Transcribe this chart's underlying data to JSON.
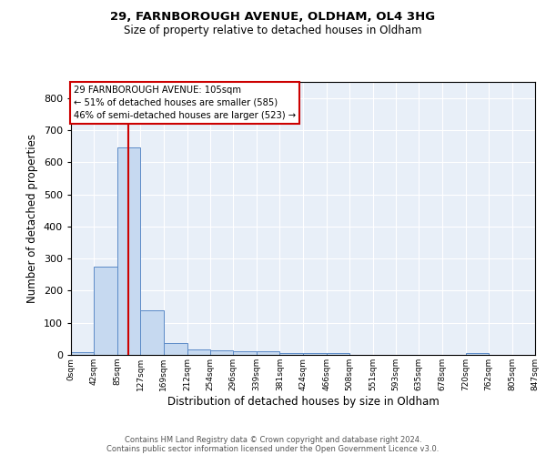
{
  "title_line1": "29, FARNBOROUGH AVENUE, OLDHAM, OL4 3HG",
  "title_line2": "Size of property relative to detached houses in Oldham",
  "xlabel": "Distribution of detached houses by size in Oldham",
  "ylabel": "Number of detached properties",
  "bin_edges": [
    0,
    42,
    85,
    127,
    169,
    212,
    254,
    296,
    339,
    381,
    424,
    466,
    508,
    551,
    593,
    635,
    678,
    720,
    762,
    805,
    847
  ],
  "bin_labels": [
    "0sqm",
    "42sqm",
    "85sqm",
    "127sqm",
    "169sqm",
    "212sqm",
    "254sqm",
    "296sqm",
    "339sqm",
    "381sqm",
    "424sqm",
    "466sqm",
    "508sqm",
    "551sqm",
    "593sqm",
    "635sqm",
    "678sqm",
    "720sqm",
    "762sqm",
    "805sqm",
    "847sqm"
  ],
  "counts": [
    8,
    275,
    645,
    140,
    37,
    18,
    13,
    11,
    10,
    7,
    6,
    6,
    0,
    0,
    0,
    0,
    0,
    7,
    0,
    0
  ],
  "bar_color": "#c6d9f0",
  "bar_edge_color": "#5b8ac7",
  "red_line_x": 105,
  "annotation_text": "29 FARNBOROUGH AVENUE: 105sqm\n← 51% of detached houses are smaller (585)\n46% of semi-detached houses are larger (523) →",
  "annotation_box_color": "#ffffff",
  "annotation_box_edge_color": "#cc0000",
  "red_line_color": "#cc0000",
  "ylim": [
    0,
    850
  ],
  "yticks": [
    0,
    100,
    200,
    300,
    400,
    500,
    600,
    700,
    800
  ],
  "background_color": "#e8eff8",
  "grid_color": "#ffffff",
  "footer_line1": "Contains HM Land Registry data © Crown copyright and database right 2024.",
  "footer_line2": "Contains public sector information licensed under the Open Government Licence v3.0."
}
